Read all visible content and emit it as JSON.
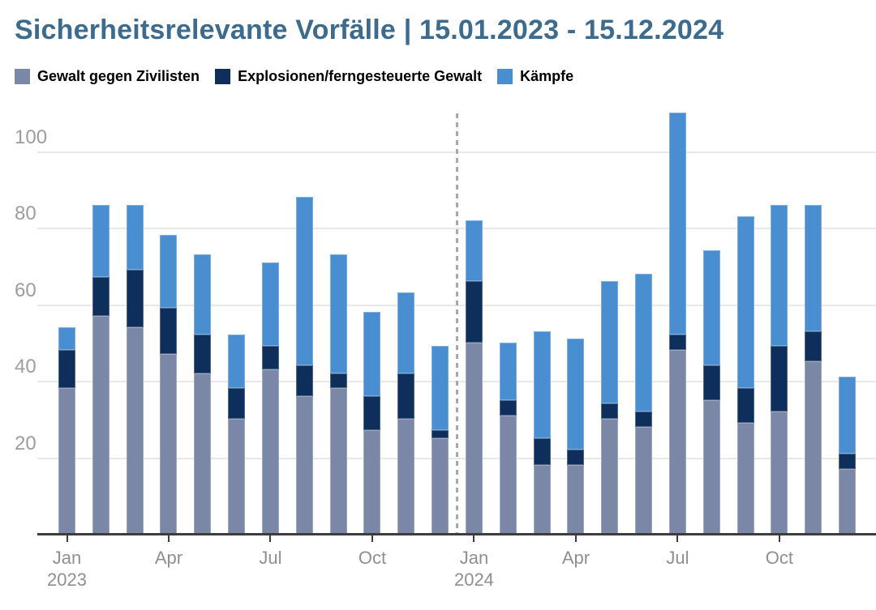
{
  "title": "Sicherheitsrelevante Vorfälle | 15.01.2023 - 15.12.2024",
  "legend": [
    {
      "label": "Gewalt gegen Zivilisten",
      "color": "#7b87a7"
    },
    {
      "label": "Explosionen/ferngesteuerte Gewalt",
      "color": "#0e2e5c"
    },
    {
      "label": "Kämpfe",
      "color": "#4a8ed2"
    }
  ],
  "colors": {
    "title": "#3c6b8e",
    "civilians": "#7b87a7",
    "explosions": "#0e2e5c",
    "fighting": "#4a8ed2",
    "gridline": "#e8e8e8",
    "axis_line": "#3d3d3d",
    "y_labels": "#9d9d9d",
    "x_labels": "#8f8f8f",
    "separator": "#a8a8a8",
    "background": "#ffffff"
  },
  "chart_data": {
    "type": "bar",
    "stacked": true,
    "title": "Sicherheitsrelevante Vorfälle | 15.01.2023 - 15.12.2024",
    "x": [
      "2023-01",
      "2023-02",
      "2023-03",
      "2023-04",
      "2023-05",
      "2023-06",
      "2023-07",
      "2023-08",
      "2023-09",
      "2023-10",
      "2023-11",
      "2023-12",
      "2024-01",
      "2024-02",
      "2024-03",
      "2024-04",
      "2024-05",
      "2024-06",
      "2024-07",
      "2024-08",
      "2024-09",
      "2024-10",
      "2024-11",
      "2024-12"
    ],
    "series": [
      {
        "name": "Gewalt gegen Zivilisten",
        "color": "#7b87a7",
        "values": [
          38,
          57,
          54,
          47,
          42,
          30,
          43,
          36,
          38,
          27,
          30,
          25,
          50,
          31,
          18,
          18,
          30,
          28,
          48,
          35,
          29,
          32,
          45,
          17
        ]
      },
      {
        "name": "Explosionen/ferngesteuerte Gewalt",
        "color": "#0e2e5c",
        "values": [
          10,
          10,
          15,
          12,
          10,
          8,
          6,
          8,
          4,
          9,
          12,
          2,
          16,
          4,
          7,
          4,
          4,
          4,
          4,
          9,
          9,
          17,
          8,
          4
        ]
      },
      {
        "name": "Kämpfe",
        "color": "#4a8ed2",
        "values": [
          6,
          19,
          17,
          19,
          21,
          14,
          22,
          44,
          31,
          22,
          21,
          22,
          16,
          15,
          28,
          29,
          32,
          36,
          58,
          30,
          45,
          37,
          33,
          20
        ]
      }
    ],
    "totals": [
      54,
      86,
      86,
      78,
      73,
      52,
      71,
      88,
      73,
      58,
      63,
      49,
      82,
      50,
      53,
      51,
      66,
      68,
      110,
      74,
      83,
      86,
      86,
      41
    ],
    "yticks": [
      20,
      40,
      60,
      80,
      100
    ],
    "ylim": [
      0,
      110
    ],
    "xticks": [
      {
        "index": 0,
        "label": "Jan",
        "sublabel": "2023"
      },
      {
        "index": 3,
        "label": "Apr",
        "sublabel": ""
      },
      {
        "index": 6,
        "label": "Jul",
        "sublabel": ""
      },
      {
        "index": 9,
        "label": "Oct",
        "sublabel": ""
      },
      {
        "index": 12,
        "label": "Jan",
        "sublabel": "2024"
      },
      {
        "index": 15,
        "label": "Apr",
        "sublabel": ""
      },
      {
        "index": 18,
        "label": "Jul",
        "sublabel": ""
      },
      {
        "index": 21,
        "label": "Oct",
        "sublabel": ""
      }
    ],
    "separator_between": [
      11,
      12
    ],
    "grid": true,
    "legend_position": "top"
  }
}
